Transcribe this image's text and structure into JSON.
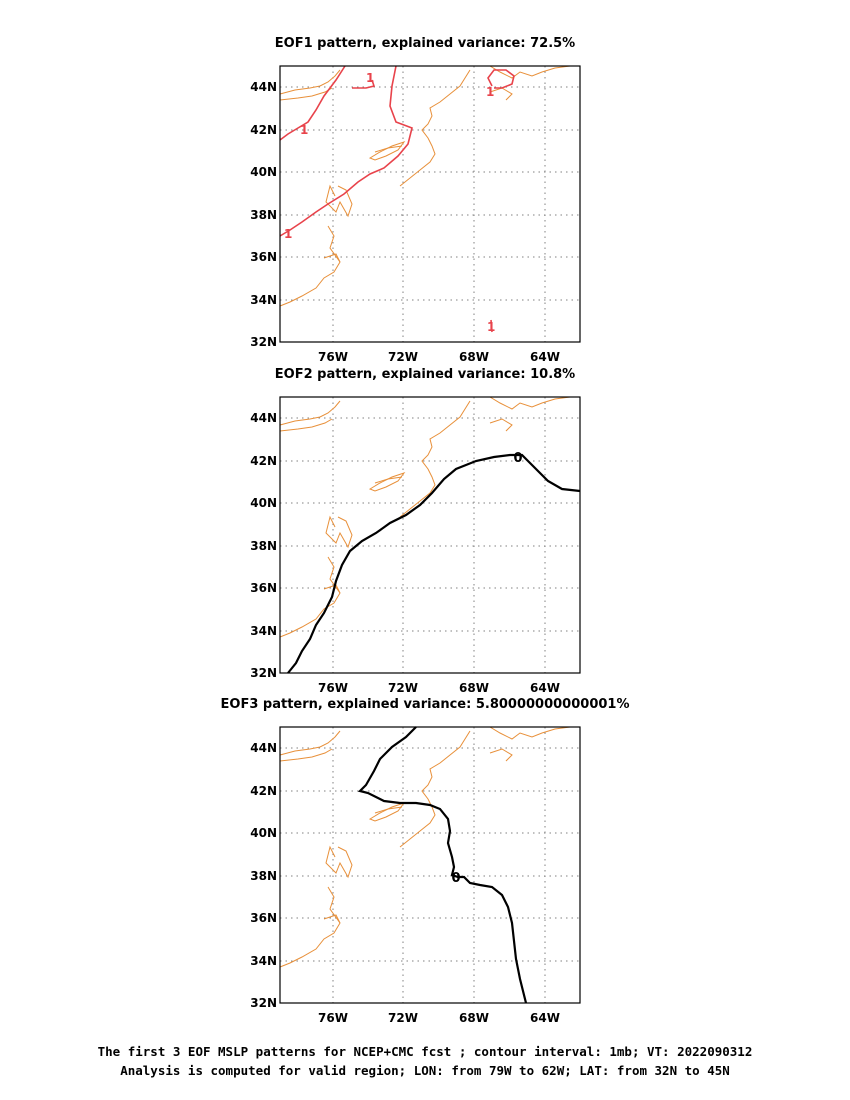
{
  "panels": [
    {
      "title": "EOF1 pattern, explained variance: 72.5%",
      "contour_color": "#e8434b",
      "contour_labels": [
        "1",
        "1",
        "1",
        "1",
        "1"
      ]
    },
    {
      "title": "EOF2 pattern, explained variance: 10.8%",
      "contour_color": "#000000",
      "contour_labels": [
        "0"
      ]
    },
    {
      "title": "EOF3 pattern, explained variance: 5.80000000000001%",
      "contour_color": "#000000",
      "contour_labels": [
        "0"
      ]
    }
  ],
  "axes": {
    "lat_labels": [
      "44N",
      "42N",
      "40N",
      "38N",
      "36N",
      "34N",
      "32N"
    ],
    "lon_labels": [
      "76W",
      "72W",
      "68W",
      "64W"
    ]
  },
  "coastline_color": "#e8903a",
  "caption": {
    "line1": "The first 3 EOF MSLP patterns for NCEP+CMC fcst ; contour interval: 1mb; VT: 2022090312",
    "line2": "Analysis is computed for valid region; LON: from 79W to 62W; LAT: from 32N to 45N"
  }
}
